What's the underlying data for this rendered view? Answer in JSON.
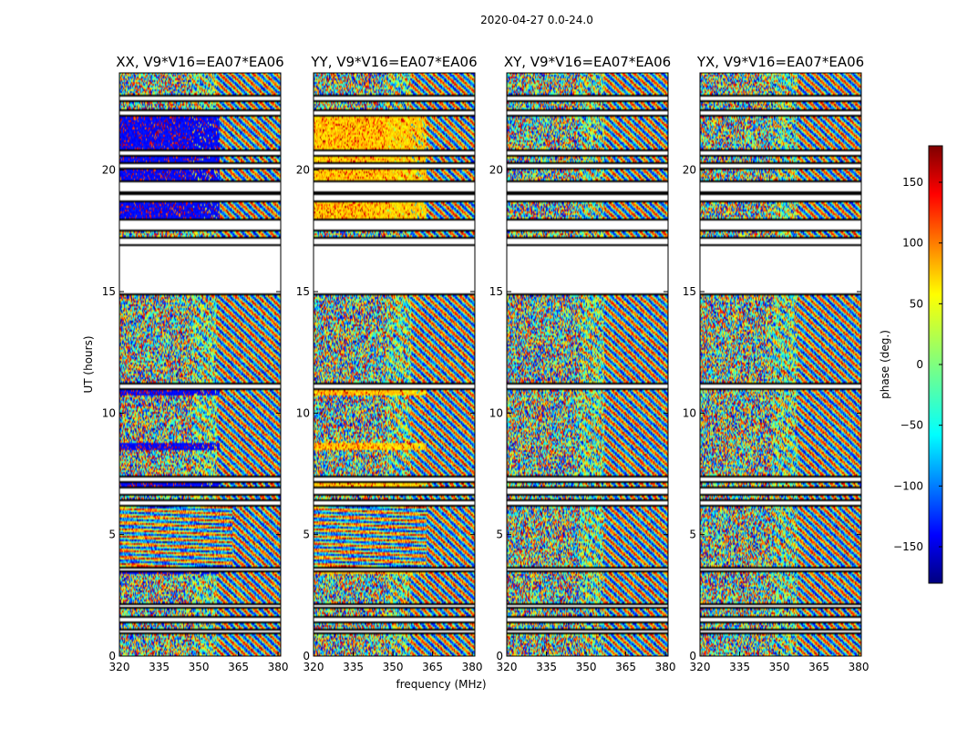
{
  "chart_data": {
    "type": "heatmap",
    "suptitle": "2020-04-27 0.0-24.0",
    "xlabel": "frequency (MHz)",
    "ylabel": "UT (hours)",
    "colorbar_label": "phase (deg.)",
    "xlim": [
      320,
      381
    ],
    "ylim": [
      0,
      24
    ],
    "xticks": [
      320,
      335,
      350,
      365,
      380
    ],
    "yticks": [
      0,
      5,
      10,
      15,
      20
    ],
    "clim": [
      -180,
      180
    ],
    "colorbar_ticks": [
      150,
      100,
      50,
      0,
      -50,
      -100,
      -150
    ],
    "colormap": "jet",
    "panels": [
      {
        "title": "XX, V9*V16=EA07*EA06",
        "bias": "blue"
      },
      {
        "title": "YY, V9*V16=EA07*EA06",
        "bias": "yellow"
      },
      {
        "title": "XY, V9*V16=EA07*EA06",
        "bias": "none"
      },
      {
        "title": "YX, V9*V16=EA07*EA06",
        "bias": "none"
      }
    ],
    "gaps_hours": [
      [
        22.85,
        23.0
      ],
      [
        22.25,
        22.45
      ],
      [
        20.6,
        20.8
      ],
      [
        20.1,
        20.25
      ],
      [
        19.05,
        19.5
      ],
      [
        18.75,
        19.05
      ],
      [
        17.55,
        17.9
      ],
      [
        16.95,
        17.15
      ],
      [
        14.9,
        16.85
      ],
      [
        11.05,
        11.2
      ],
      [
        7.2,
        7.35
      ],
      [
        6.7,
        6.9
      ],
      [
        6.25,
        6.4
      ],
      [
        3.5,
        3.6
      ],
      [
        2.0,
        2.1
      ],
      [
        1.45,
        1.6
      ],
      [
        0.95,
        1.05
      ]
    ]
  }
}
